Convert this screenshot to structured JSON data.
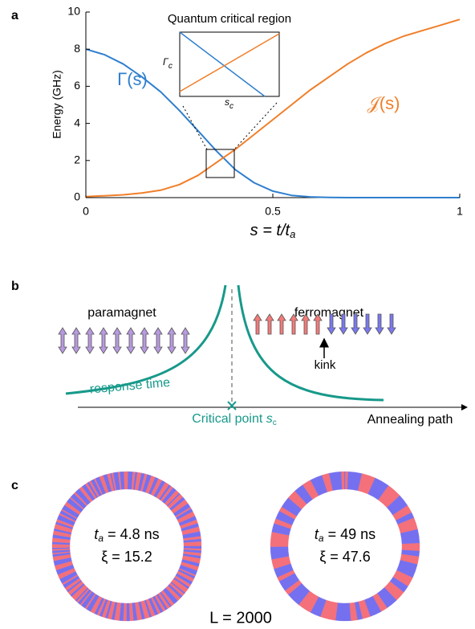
{
  "chart_data": {
    "type": "line",
    "panel_label": "a",
    "y_label": "Energy (GHz)",
    "x_label": {
      "main": "s = t/t",
      "sub": "a"
    },
    "x": [
      0,
      0.05,
      0.1,
      0.15,
      0.2,
      0.25,
      0.3,
      0.35,
      0.4,
      0.45,
      0.5,
      0.55,
      0.6,
      0.65,
      0.7,
      0.75,
      0.8,
      0.85,
      0.9,
      0.95,
      1
    ],
    "series": [
      {
        "name": "Γ(s)",
        "color": "#2f7fce",
        "values": [
          8.0,
          7.7,
          7.2,
          6.5,
          5.7,
          4.7,
          3.6,
          2.5,
          1.5,
          0.8,
          0.35,
          0.12,
          0.04,
          0.01,
          0,
          0,
          0,
          0,
          0,
          0,
          0
        ]
      },
      {
        "name": "𝒥(s)",
        "color": "#f07f2a",
        "values": [
          0.05,
          0.1,
          0.15,
          0.25,
          0.4,
          0.7,
          1.2,
          1.9,
          2.6,
          3.4,
          4.2,
          5.0,
          5.8,
          6.5,
          7.2,
          7.8,
          8.3,
          8.7,
          9.0,
          9.3,
          9.6
        ]
      }
    ],
    "xlim": [
      0,
      1
    ],
    "ylim": [
      0,
      10
    ],
    "xticks": [
      0,
      0.5,
      1
    ],
    "yticks": [
      0,
      2,
      4,
      6,
      8,
      10
    ],
    "inset": {
      "title": "Quantum critical region",
      "y_label": {
        "main": "Γ",
        "sub": "c"
      },
      "x_label": {
        "main": "s",
        "sub": "c"
      }
    }
  },
  "panel_b": {
    "panel_label": "b",
    "left_phase": "paramagnet",
    "right_phase": "ferromagnet",
    "defect": "kink",
    "curve_label": "response time",
    "critical_point": {
      "main": "Critical point ",
      "var": "s",
      "sub": "c"
    },
    "axis_label": "Annealing path"
  },
  "panel_c": {
    "panel_label": "c",
    "rings": [
      {
        "time": {
          "var": "t",
          "sub": "a",
          "rest": " = 4.8 ns"
        },
        "xi": "ξ = 15.2"
      },
      {
        "time": {
          "var": "t",
          "sub": "a",
          "rest": " = 49 ns"
        },
        "xi": "ξ = 47.6"
      }
    ],
    "size": "L = 2000"
  }
}
